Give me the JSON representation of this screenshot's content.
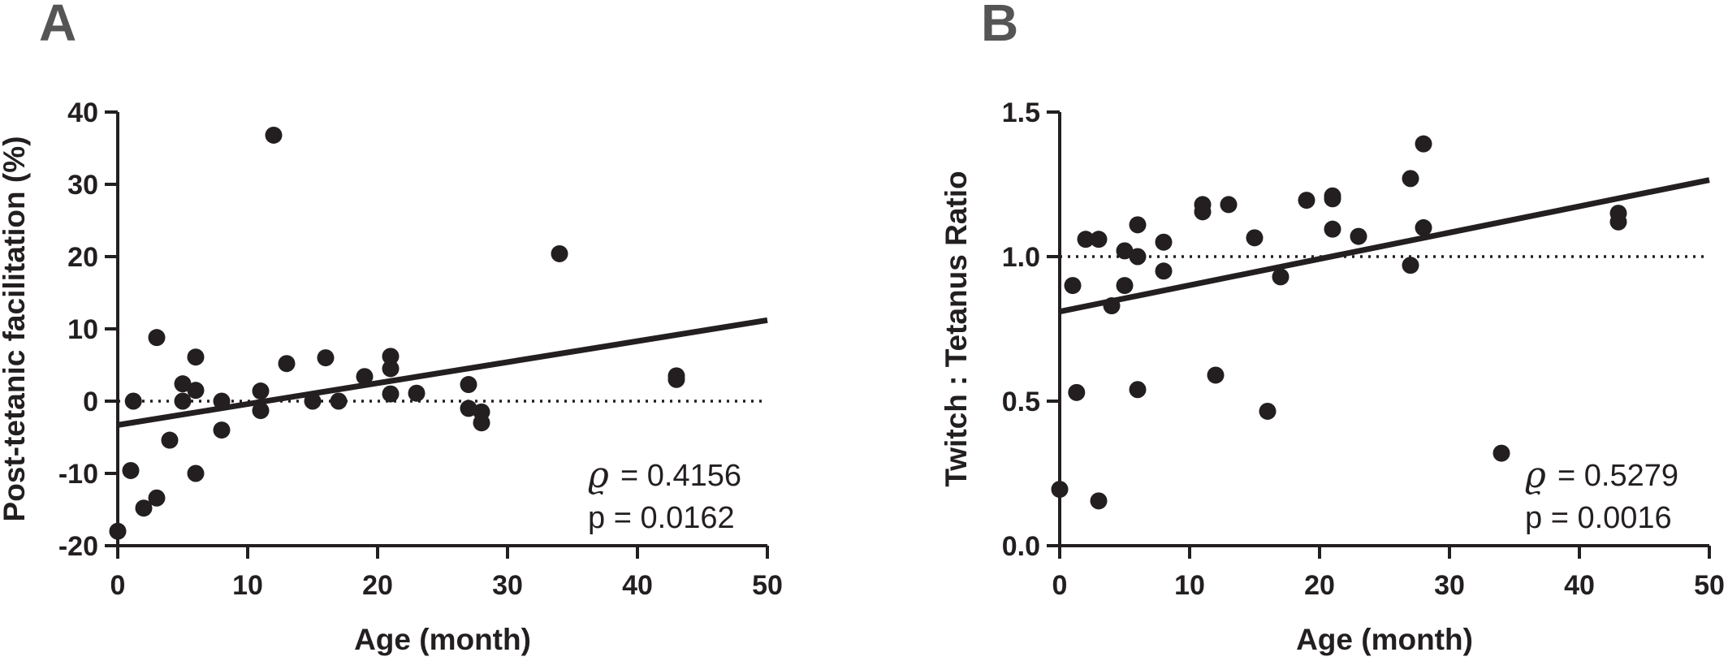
{
  "chart_data": [
    {
      "type": "scatter",
      "panel": "A",
      "xlabel": "Age (month)",
      "ylabel": "Post-tetanic facilitation (%)",
      "xlim": [
        0,
        50
      ],
      "ylim": [
        -20,
        40
      ],
      "xticks": [
        "0",
        "10",
        "20",
        "30",
        "40",
        "50"
      ],
      "yticks": [
        "-20",
        "-10",
        "0",
        "10",
        "20",
        "30",
        "40"
      ],
      "reference_line_y": 0,
      "fit_line": [
        [
          0,
          -3.3
        ],
        [
          50,
          11.2
        ]
      ],
      "stats": {
        "rho_symbol": "ϱ",
        "rho": "= 0.4156",
        "p": "p = 0.0162"
      },
      "points": [
        [
          0,
          -18
        ],
        [
          1,
          -9.6
        ],
        [
          1.2,
          0
        ],
        [
          2,
          -14.8
        ],
        [
          3,
          8.8
        ],
        [
          3,
          -13.4
        ],
        [
          4,
          -5.4
        ],
        [
          5,
          2.4
        ],
        [
          5,
          0
        ],
        [
          6,
          6.1
        ],
        [
          6,
          1.5
        ],
        [
          6,
          -10
        ],
        [
          8,
          0
        ],
        [
          8,
          -4
        ],
        [
          11,
          1.4
        ],
        [
          11,
          -1.3
        ],
        [
          12,
          36.8
        ],
        [
          13,
          5.2
        ],
        [
          15,
          0
        ],
        [
          16,
          6
        ],
        [
          17,
          0
        ],
        [
          19,
          3.4
        ],
        [
          21,
          6.2
        ],
        [
          21,
          4.5
        ],
        [
          21,
          1
        ],
        [
          23,
          1.1
        ],
        [
          27,
          2.3
        ],
        [
          27,
          -1
        ],
        [
          28,
          -1.5
        ],
        [
          28,
          -3
        ],
        [
          34,
          20.4
        ],
        [
          43,
          3.5
        ],
        [
          43,
          3
        ]
      ]
    },
    {
      "type": "scatter",
      "panel": "B",
      "xlabel": "Age (month)",
      "ylabel": "Twitch : Tetanus Ratio",
      "xlim": [
        0,
        50
      ],
      "ylim": [
        0,
        1.5
      ],
      "xticks": [
        "0",
        "10",
        "20",
        "30",
        "40",
        "50"
      ],
      "yticks": [
        "0.0",
        "0.5",
        "1.0",
        "1.5"
      ],
      "reference_line_y": 1.0,
      "fit_line": [
        [
          0,
          0.81
        ],
        [
          50,
          1.265
        ]
      ],
      "stats": {
        "rho_symbol": "ϱ",
        "rho": "= 0.5279",
        "p": "p = 0.0016"
      },
      "points": [
        [
          0,
          0.195
        ],
        [
          1,
          0.9
        ],
        [
          1.3,
          0.53
        ],
        [
          2,
          1.06
        ],
        [
          3,
          1.06
        ],
        [
          3,
          0.155
        ],
        [
          4,
          0.83
        ],
        [
          5,
          1.02
        ],
        [
          5,
          0.9
        ],
        [
          6,
          1.11
        ],
        [
          6,
          1.0
        ],
        [
          6,
          0.54
        ],
        [
          8,
          1.05
        ],
        [
          8,
          0.95
        ],
        [
          11,
          1.18
        ],
        [
          11,
          1.155
        ],
        [
          12,
          0.59
        ],
        [
          13,
          1.18
        ],
        [
          15,
          1.065
        ],
        [
          16,
          0.465
        ],
        [
          17,
          0.93
        ],
        [
          19,
          1.195
        ],
        [
          21,
          1.2
        ],
        [
          21,
          1.21
        ],
        [
          21,
          1.095
        ],
        [
          23,
          1.07
        ],
        [
          27,
          1.27
        ],
        [
          27,
          0.97
        ],
        [
          28,
          1.39
        ],
        [
          28,
          1.1
        ],
        [
          34,
          0.32
        ],
        [
          43,
          1.15
        ],
        [
          43,
          1.12
        ]
      ]
    }
  ]
}
